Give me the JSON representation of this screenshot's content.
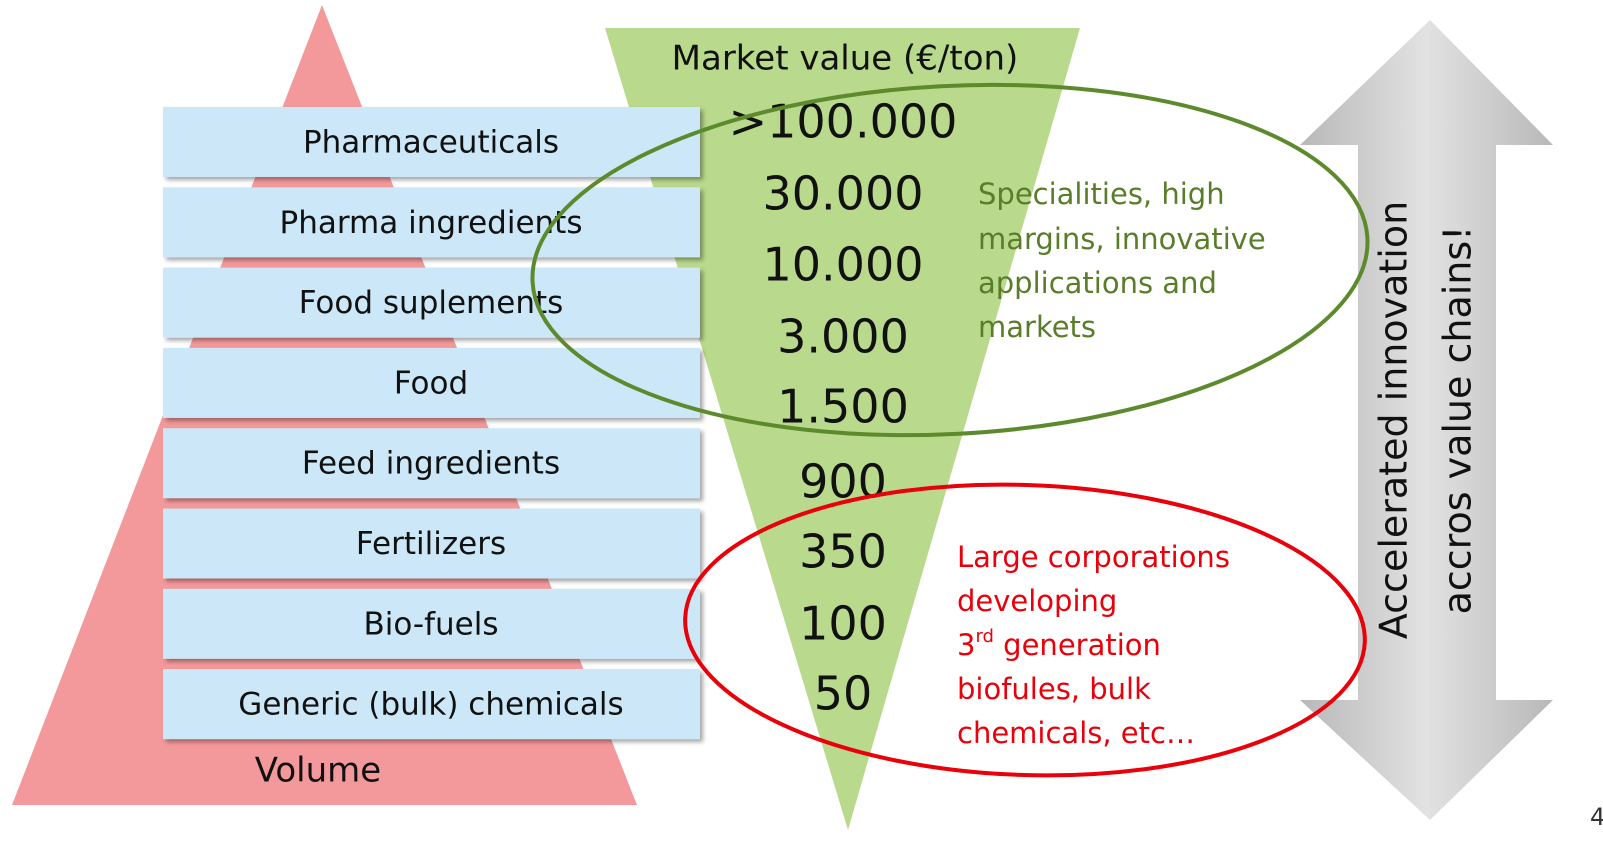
{
  "title": "Market value (€/ton)",
  "levels": [
    {
      "label": "Pharmaceuticals",
      "value": ">100.000"
    },
    {
      "label": "Pharma ingredients",
      "value": "30.000"
    },
    {
      "label": "Food suplements",
      "value": "10.000"
    },
    {
      "label": "Food",
      "value": "3.000"
    },
    {
      "label": "Feed ingredients",
      "value": "1.500"
    },
    {
      "label": "Fertilizers",
      "value": "900"
    },
    {
      "label": "Bio-fuels",
      "value": "350"
    },
    {
      "label": "Generic (bulk) chemicals",
      "value": "100"
    }
  ],
  "extra_value": "50",
  "volume_label": "Volume",
  "green_note": [
    "Specialities, high",
    "margins, innovative",
    "applications and",
    "markets"
  ],
  "red_note": {
    "line1": "Large corporations",
    "line2": "developing",
    "line3_number": "3",
    "line3_sup": "rd",
    "line3_rest": " generation",
    "line4": "biofules, bulk",
    "line5": "chemicals, etc…"
  },
  "arrow_text": [
    "Accelerated innovation",
    "accros value chains!"
  ],
  "page_number": "4"
}
